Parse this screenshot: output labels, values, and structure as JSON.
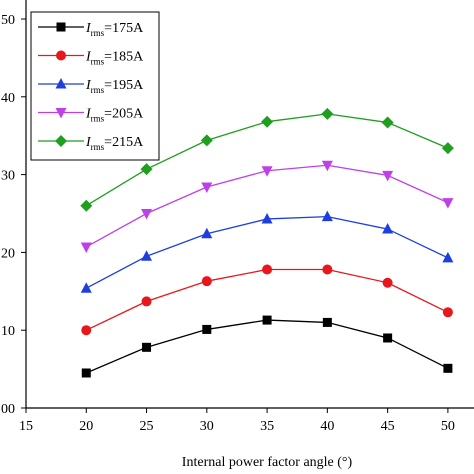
{
  "chart_data": {
    "type": "line",
    "title": "",
    "xlabel": "Internal power factor angle (°)",
    "ylabel": "",
    "xlim": [
      15,
      52
    ],
    "ylim": [
      0,
      50
    ],
    "xticks": [
      15,
      20,
      25,
      30,
      35,
      40,
      45,
      50
    ],
    "xtick_labels": [
      "15",
      "20",
      "25",
      "30",
      "35",
      "40",
      "45",
      "50"
    ],
    "yticks": [
      0,
      10,
      20,
      30,
      40,
      50
    ],
    "ytick_labels": [
      "00",
      "10",
      "20",
      "30",
      "40",
      "50"
    ],
    "grid": false,
    "legend_position": "top-left",
    "x": [
      20,
      25,
      30,
      35,
      40,
      45,
      50
    ],
    "series": [
      {
        "name_main": "I",
        "name_sub": "rms",
        "name_tail": "=175A",
        "color": "#000000",
        "marker": "square",
        "values": [
          4.5,
          7.8,
          10.1,
          11.3,
          11.0,
          9.0,
          5.1
        ]
      },
      {
        "name_main": "I",
        "name_sub": "rms",
        "name_tail": "=185A",
        "color": "#e8171c",
        "marker": "circle",
        "values": [
          10.0,
          13.7,
          16.3,
          17.8,
          17.8,
          16.1,
          12.3
        ]
      },
      {
        "name_main": "I",
        "name_sub": "rms",
        "name_tail": "=195A",
        "color": "#1f3fdd",
        "marker": "triangle-up",
        "values": [
          15.4,
          19.5,
          22.4,
          24.3,
          24.6,
          23.0,
          19.3
        ]
      },
      {
        "name_main": "I",
        "name_sub": "rms",
        "name_tail": "=205A",
        "color": "#c040e8",
        "marker": "triangle-down",
        "values": [
          20.7,
          25.0,
          28.4,
          30.5,
          31.2,
          29.9,
          26.4
        ]
      },
      {
        "name_main": "I",
        "name_sub": "rms",
        "name_tail": "=215A",
        "color": "#1f9e1f",
        "marker": "diamond",
        "values": [
          26.0,
          30.7,
          34.4,
          36.8,
          37.8,
          36.7,
          33.4
        ]
      }
    ]
  }
}
